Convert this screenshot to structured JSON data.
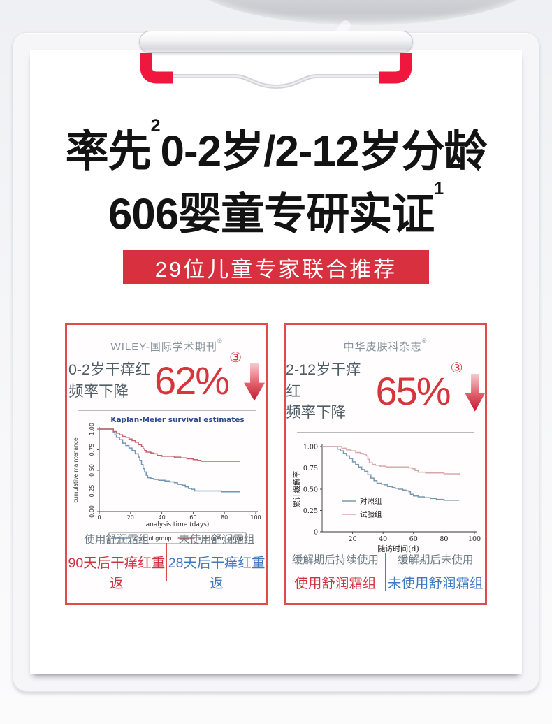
{
  "page": {
    "headline1_pre": "率先",
    "headline1_sup": "2",
    "headline1_rest": "0-2岁/2-12岁分龄",
    "headline2": "606婴童专研实证",
    "headline2_sup": "1",
    "banner": "29位儿童专家联合推荐"
  },
  "colors": {
    "banner_red": "#d8303e",
    "panel_border_red": "#e04b4e",
    "stat_number_red": "#d6353c",
    "footer_red": "#cf3540",
    "footer_blue": "#4179bd",
    "clip_red": "#f0173f",
    "control_line_blue": "#7195b5",
    "treatment_line_red": "#c1636e",
    "duizhao_line_blue": "#7b99ae",
    "shiyan_line_pink": "#d9a8ad"
  },
  "panels": [
    {
      "journal": "WILEY-国际学术期刊",
      "journal_sup": "®",
      "stat_line1": "0-2岁干痒红",
      "stat_line2": "频率下降",
      "stat_value": "62%",
      "stat_sup": "③",
      "footer_left_top": "使用舒润霜组",
      "footer_left_bottom": "90天后干痒红重返",
      "footer_right_top": "未使用舒润霜组",
      "footer_right_bottom": "28天后干痒红重返"
    },
    {
      "journal": "中华皮肤科杂志",
      "journal_sup": "®",
      "stat_line1": "2-12岁干痒红",
      "stat_line2": "频率下降",
      "stat_value": "65%",
      "stat_sup": "③",
      "footer_left_top": "缓解期后持续使用",
      "footer_left_bottom": "使用舒润霜组",
      "footer_right_top": "缓解期后未使用",
      "footer_right_bottom": "未使用舒润霜组"
    }
  ],
  "chart_data": [
    {
      "type": "line",
      "title": "Kaplan-Meier survival estimates",
      "xlabel": "analysis time (days)",
      "ylabel": "cumulative maintenance",
      "xlim": [
        0,
        100
      ],
      "ylim": [
        0,
        1
      ],
      "xticks": [
        0,
        20,
        40,
        60,
        80,
        100
      ],
      "yticks": [
        "0.00",
        "0.25",
        "0.50",
        "0.75",
        "1.00"
      ],
      "legend_position": "bottom",
      "grid": false,
      "series": [
        {
          "name": "control group",
          "color": "#7195b5",
          "points": [
            [
              0,
              1
            ],
            [
              8,
              1
            ],
            [
              9,
              0.96
            ],
            [
              10,
              0.93
            ],
            [
              11,
              0.9
            ],
            [
              13,
              0.87
            ],
            [
              15,
              0.83
            ],
            [
              17,
              0.8
            ],
            [
              19,
              0.77
            ],
            [
              21,
              0.74
            ],
            [
              23,
              0.7
            ],
            [
              25,
              0.66
            ],
            [
              26,
              0.62
            ],
            [
              27,
              0.57
            ],
            [
              28,
              0.52
            ],
            [
              29,
              0.48
            ],
            [
              30,
              0.44
            ],
            [
              31,
              0.41
            ],
            [
              33,
              0.4
            ],
            [
              35,
              0.39
            ],
            [
              38,
              0.38
            ],
            [
              42,
              0.37
            ],
            [
              45,
              0.36
            ],
            [
              48,
              0.35
            ],
            [
              50,
              0.33
            ],
            [
              53,
              0.32
            ],
            [
              55,
              0.3
            ],
            [
              57,
              0.28
            ],
            [
              59,
              0.27
            ],
            [
              61,
              0.25
            ],
            [
              75,
              0.25
            ],
            [
              78,
              0.24
            ],
            [
              90,
              0.24
            ]
          ]
        },
        {
          "name": "treatment group",
          "color": "#c1636e",
          "points": [
            [
              0,
              1
            ],
            [
              8,
              1
            ],
            [
              9,
              0.97
            ],
            [
              11,
              0.95
            ],
            [
              13,
              0.93
            ],
            [
              15,
              0.91
            ],
            [
              17,
              0.9
            ],
            [
              19,
              0.88
            ],
            [
              21,
              0.86
            ],
            [
              23,
              0.84
            ],
            [
              25,
              0.81
            ],
            [
              27,
              0.79
            ],
            [
              28,
              0.76
            ],
            [
              29,
              0.74
            ],
            [
              30,
              0.72
            ],
            [
              33,
              0.71
            ],
            [
              35,
              0.7
            ],
            [
              37,
              0.68
            ],
            [
              40,
              0.67
            ],
            [
              44,
              0.67
            ],
            [
              48,
              0.66
            ],
            [
              52,
              0.65
            ],
            [
              56,
              0.64
            ],
            [
              60,
              0.63
            ],
            [
              63,
              0.62
            ],
            [
              65,
              0.61
            ],
            [
              90,
              0.61
            ]
          ]
        }
      ]
    },
    {
      "type": "line",
      "title": "",
      "xlabel": "随访时间(d)",
      "ylabel": "累计缓解率",
      "xlim": [
        0,
        100
      ],
      "ylim": [
        0,
        1
      ],
      "xticks": [
        20,
        40,
        60,
        80,
        100
      ],
      "yticks": [
        "0",
        "0.25",
        "0.50",
        "0.75",
        "1.00"
      ],
      "legend_position": "inside-left",
      "grid": false,
      "series": [
        {
          "name": "对照组",
          "color": "#7b99ae",
          "points": [
            [
              0,
              1
            ],
            [
              8,
              1
            ],
            [
              10,
              0.97
            ],
            [
              12,
              0.95
            ],
            [
              14,
              0.92
            ],
            [
              16,
              0.89
            ],
            [
              18,
              0.86
            ],
            [
              20,
              0.82
            ],
            [
              22,
              0.79
            ],
            [
              24,
              0.76
            ],
            [
              26,
              0.73
            ],
            [
              28,
              0.71
            ],
            [
              30,
              0.67
            ],
            [
              32,
              0.63
            ],
            [
              34,
              0.6
            ],
            [
              36,
              0.57
            ],
            [
              39,
              0.56
            ],
            [
              41,
              0.55
            ],
            [
              43,
              0.53
            ],
            [
              46,
              0.52
            ],
            [
              48,
              0.51
            ],
            [
              50,
              0.5
            ],
            [
              53,
              0.49
            ],
            [
              55,
              0.48
            ],
            [
              57,
              0.47
            ],
            [
              58,
              0.44
            ],
            [
              60,
              0.42
            ],
            [
              63,
              0.41
            ],
            [
              67,
              0.4
            ],
            [
              71,
              0.39
            ],
            [
              75,
              0.38
            ],
            [
              80,
              0.37
            ],
            [
              90,
              0.37
            ]
          ]
        },
        {
          "name": "试验组",
          "color": "#d9a8ad",
          "points": [
            [
              0,
              1
            ],
            [
              10,
              1
            ],
            [
              13,
              0.98
            ],
            [
              16,
              0.96
            ],
            [
              19,
              0.95
            ],
            [
              22,
              0.93
            ],
            [
              25,
              0.92
            ],
            [
              27,
              0.91
            ],
            [
              29,
              0.89
            ],
            [
              30,
              0.85
            ],
            [
              31,
              0.81
            ],
            [
              33,
              0.79
            ],
            [
              35,
              0.78
            ],
            [
              38,
              0.77
            ],
            [
              42,
              0.76
            ],
            [
              55,
              0.76
            ],
            [
              57,
              0.75
            ],
            [
              59,
              0.74
            ],
            [
              61,
              0.72
            ],
            [
              63,
              0.7
            ],
            [
              68,
              0.69
            ],
            [
              75,
              0.69
            ],
            [
              80,
              0.68
            ],
            [
              88,
              0.68
            ],
            [
              90,
              0.67
            ]
          ]
        }
      ]
    }
  ]
}
